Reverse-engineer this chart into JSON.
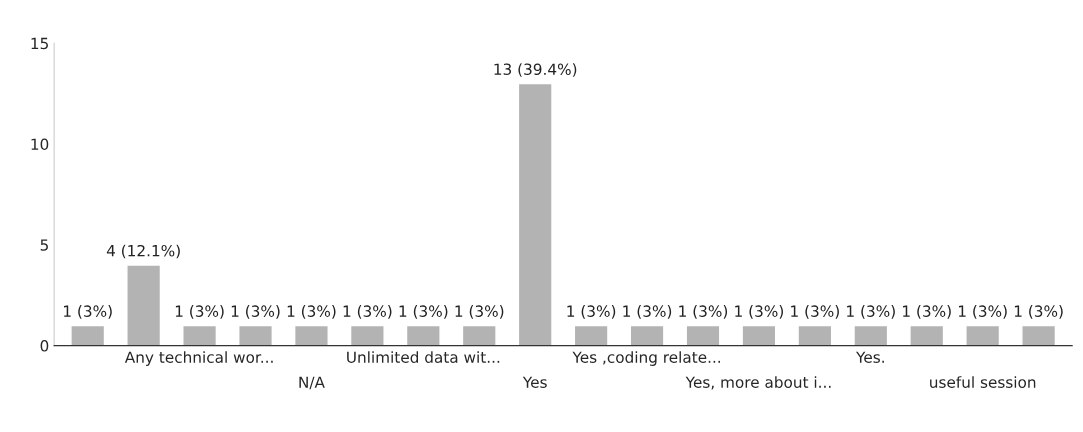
{
  "chart_data": {
    "type": "bar",
    "categories": [
      null,
      null,
      "Any technical wor...",
      null,
      "N/A",
      null,
      "Unlimited data wit...",
      null,
      "Yes",
      null,
      "Yes ,coding relate...",
      null,
      "Yes, more about i...",
      null,
      "Yes.",
      null,
      "useful session",
      null
    ],
    "values": [
      1,
      4,
      1,
      1,
      1,
      1,
      1,
      1,
      13,
      1,
      1,
      1,
      1,
      1,
      1,
      1,
      1,
      1
    ],
    "value_labels": [
      "1 (3%)",
      "4 (12.1%)",
      "1 (3%)",
      "1 (3%)",
      "1 (3%)",
      "1 (3%)",
      "1 (3%)",
      "1 (3%)",
      "13 (39.4%)",
      "1 (3%)",
      "1 (3%)",
      "1 (3%)",
      "1 (3%)",
      "1 (3%)",
      "1 (3%)",
      "1 (3%)",
      "1 (3%)",
      "1 (3%)"
    ],
    "color": "#b3b3b3",
    "ylim": [
      0,
      15
    ],
    "yticks": [
      0,
      5,
      10,
      15
    ],
    "grid": false
  }
}
